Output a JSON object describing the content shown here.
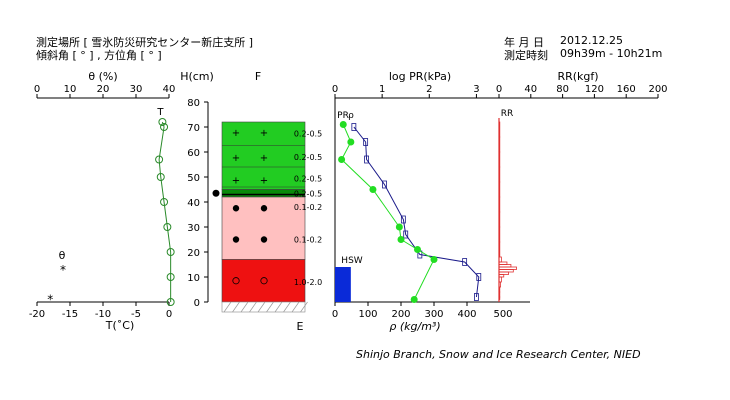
{
  "header": {
    "site_line": "測定場所 [ 雪氷防災研究センター新庄支所 ]",
    "slope_line": "傾斜角 [ ° ] , 方位角 [ ° ]",
    "date_label": "年 月 日",
    "date_value": "2012.12.25",
    "time_label": "測定時刻",
    "time_value": "09h39m - 10h21m"
  },
  "footer": {
    "credit": "Shinjo Branch, Snow and Ice Research Center, NIED"
  },
  "colors": {
    "wetness_line": "#2a8a2a",
    "dense_line": "#1a1a8a",
    "dense_marker": "#22dd22",
    "hardness_bar": "#e03030",
    "hsw_bar": "#0a2ad8",
    "grain_green": "#22cc22",
    "grain_dark_green": "#0a8a0a",
    "grain_pink": "#ffc0c0",
    "grain_red": "#ee1111"
  },
  "chart_data": [
    {
      "id": "wetness_temperature",
      "type": "scatter",
      "top_axis": {
        "label": "θ (%)",
        "ticks": [
          "0",
          "10",
          "20",
          "30",
          "40"
        ],
        "range": [
          0,
          40
        ]
      },
      "bottom_axis": {
        "label": "T(˚C)",
        "ticks": [
          "-20",
          "-15",
          "-10",
          "-5",
          "0"
        ],
        "range": [
          -20,
          0
        ]
      },
      "series_label_T": "T",
      "legend": {
        "theta_symbol": "θ",
        "temp_symbol": "*"
      },
      "wetness": {
        "depth": [
          72,
          70,
          57,
          50,
          40,
          30,
          20,
          10,
          0
        ],
        "value": [
          38,
          38.5,
          37,
          37.5,
          38.5,
          39.5,
          40.5,
          40.5,
          40.5
        ]
      },
      "temperature_points": [
        {
          "depth": 1,
          "t": -18
        }
      ]
    },
    {
      "id": "height_axis",
      "type": "table",
      "axis_label": "H(cm)",
      "ticks": [
        "0",
        "10",
        "20",
        "30",
        "40",
        "50",
        "60",
        "70",
        "80"
      ],
      "range": [
        0,
        80
      ]
    },
    {
      "id": "grain_form_column",
      "type": "table",
      "header": "F",
      "bottom_label": "E",
      "layers": [
        {
          "bottom": 45,
          "top": 72,
          "color": "grain_green",
          "symbol": "+"
        },
        {
          "bottom": 42,
          "top": 45,
          "color": "grain_dark_green",
          "symbol": "="
        },
        {
          "bottom": 17,
          "top": 42,
          "color": "grain_pink",
          "symbol": "●"
        },
        {
          "bottom": 0,
          "top": 17,
          "color": "grain_red",
          "symbol": "○"
        }
      ],
      "symbol_rows": [
        {
          "depth": 68,
          "symbol": "+"
        },
        {
          "depth": 58,
          "symbol": "+"
        },
        {
          "depth": 49,
          "symbol": "+"
        },
        {
          "depth": 37.5,
          "symbol": "●"
        },
        {
          "depth": 25,
          "symbol": "●"
        },
        {
          "depth": 8.5,
          "symbol": "○"
        }
      ],
      "surface_marker_depth": 43.5
    },
    {
      "id": "grain_size",
      "type": "table",
      "labels": [
        {
          "depth": 67.5,
          "text": "0.2-0.5"
        },
        {
          "depth": 58,
          "text": "0.2-0.5"
        },
        {
          "depth": 49.5,
          "text": "0.2-0.5"
        },
        {
          "depth": 43.5,
          "text": "0.2-0.5"
        },
        {
          "depth": 38,
          "text": "0.1-0.2"
        },
        {
          "depth": 25,
          "text": "0.1-0.2"
        },
        {
          "depth": 8,
          "text": "1.0-2.0"
        }
      ]
    },
    {
      "id": "density_permeability",
      "type": "line",
      "top_axis": {
        "label": "log PR(kPa)",
        "ticks": [
          "0",
          "1",
          "2",
          "3"
        ],
        "range": [
          0,
          3.5
        ]
      },
      "bottom_axis": {
        "label": "ρ (kg/m³)",
        "ticks": [
          "0",
          "100",
          "200",
          "300",
          "400"
        ],
        "range": [
          0,
          500
        ]
      },
      "series_labels": {
        "pr": "PR",
        "rho": "ρ"
      },
      "hsw": {
        "label": "HSW",
        "value": 48,
        "height": 14
      },
      "pr": {
        "depth": [
          70,
          64,
          57,
          47,
          33,
          27,
          19,
          16,
          10,
          2
        ],
        "value": [
          0.4,
          0.65,
          0.67,
          1.05,
          1.45,
          1.5,
          1.8,
          2.75,
          3.05,
          3.0
        ]
      },
      "density": {
        "depth": [
          71,
          64,
          57,
          45,
          30,
          25,
          21,
          17,
          1
        ],
        "value": [
          25,
          48,
          20,
          115,
          195,
          200,
          250,
          300,
          240
        ]
      }
    },
    {
      "id": "ram_resistance",
      "type": "bar",
      "top_axis": {
        "label": "RR(kgf)",
        "ticks": [
          "0",
          "40",
          "80",
          "120",
          "160",
          "200"
        ],
        "range": [
          0,
          200
        ]
      },
      "bottom_axis": {
        "ticks": [
          "500"
        ]
      },
      "series_label": "RR",
      "profile": {
        "depth": [
          72,
          66,
          60,
          54,
          48,
          42,
          36,
          30,
          24,
          18,
          16,
          15,
          14,
          13,
          12,
          11,
          10,
          8,
          6,
          4,
          2,
          1
        ],
        "value": [
          1,
          1,
          1,
          1,
          1,
          1,
          1,
          1,
          1,
          3,
          10,
          15,
          22,
          18,
          12,
          6,
          3,
          2,
          1,
          1,
          1,
          1
        ]
      }
    }
  ]
}
